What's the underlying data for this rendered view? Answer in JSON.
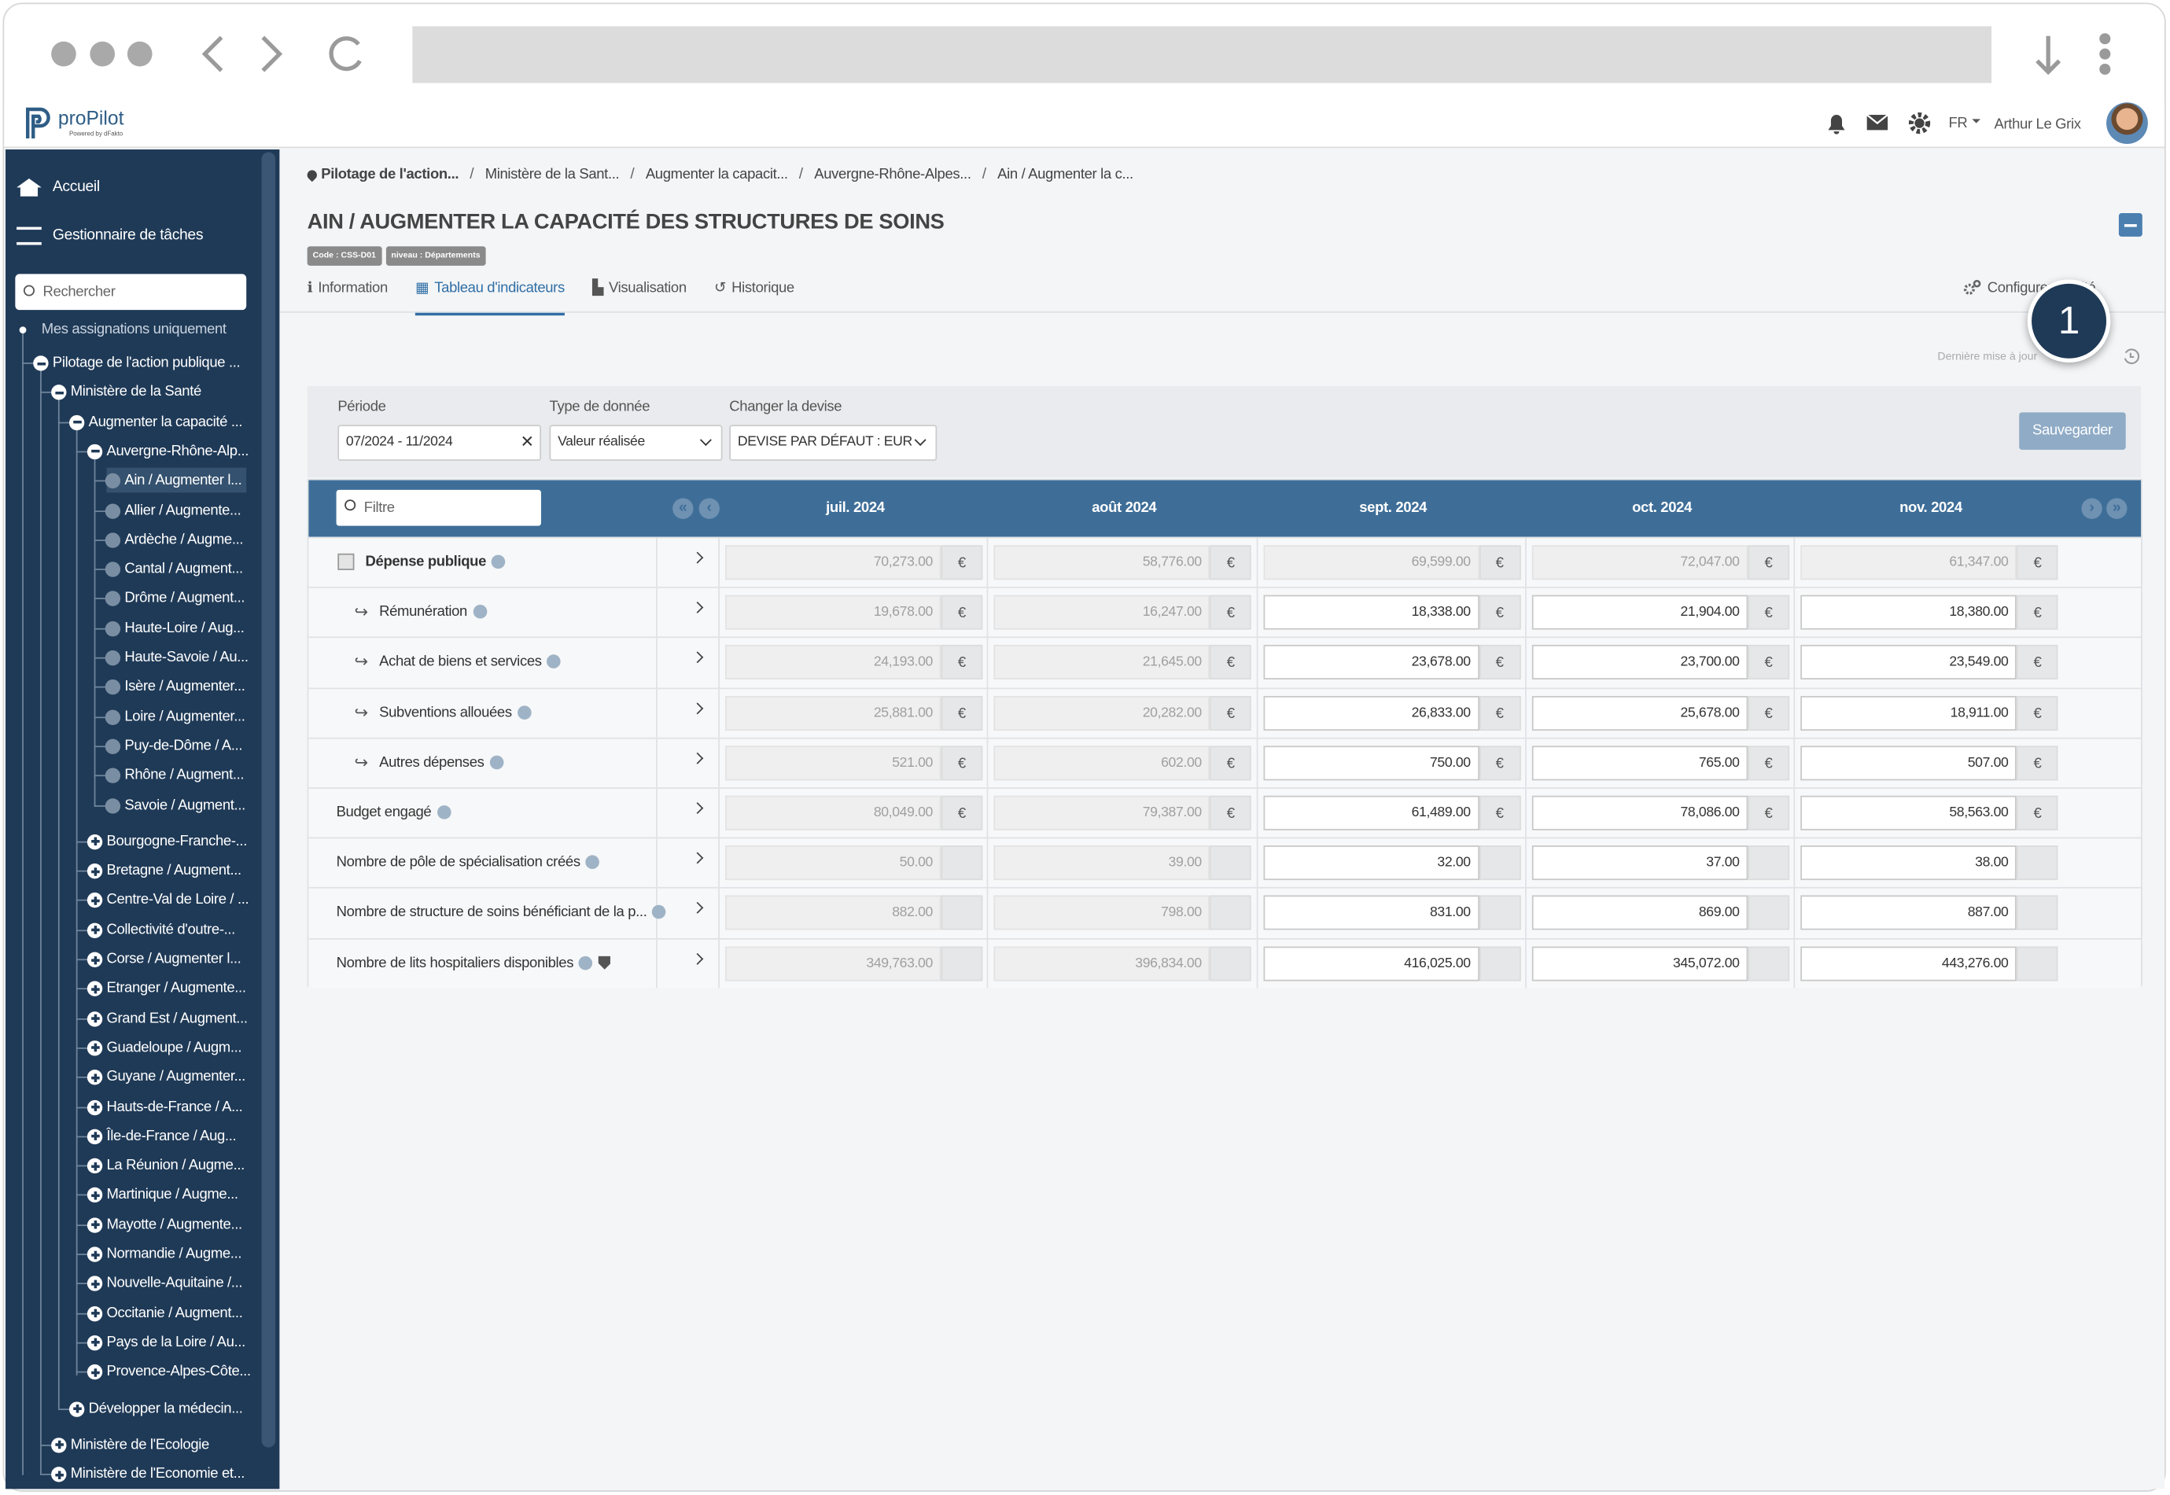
{
  "header": {
    "logo": "proPilot",
    "logo_sub": "Powered by dFakto",
    "language": "FR",
    "user": "Arthur Le Grix"
  },
  "sidebar": {
    "menu": [
      "Accueil",
      "Gestionnaire de tâches"
    ],
    "search_placeholder": "Rechercher",
    "filter": "Mes assignations uniquement",
    "tree": [
      {
        "level": 0,
        "state": "open",
        "label": "Pilotage de l'action publique ..."
      },
      {
        "level": 1,
        "state": "open",
        "label": "Ministère de la Santé"
      },
      {
        "level": 2,
        "state": "open",
        "label": "Augmenter la capacité ..."
      },
      {
        "level": 3,
        "state": "open",
        "label": "Auvergne-Rhône-Alp..."
      },
      {
        "level": 4,
        "state": "leaf",
        "label": "Ain / Augmenter l...",
        "selected": true
      },
      {
        "level": 4,
        "state": "leaf",
        "label": "Allier / Augmente..."
      },
      {
        "level": 4,
        "state": "leaf",
        "label": "Ardèche / Augme..."
      },
      {
        "level": 4,
        "state": "leaf",
        "label": "Cantal / Augment..."
      },
      {
        "level": 4,
        "state": "leaf",
        "label": "Drôme / Augment..."
      },
      {
        "level": 4,
        "state": "leaf",
        "label": "Haute-Loire / Aug..."
      },
      {
        "level": 4,
        "state": "leaf",
        "label": "Haute-Savoie / Au..."
      },
      {
        "level": 4,
        "state": "leaf",
        "label": "Isère / Augmenter..."
      },
      {
        "level": 4,
        "state": "leaf",
        "label": "Loire / Augmenter..."
      },
      {
        "level": 4,
        "state": "leaf",
        "label": "Puy-de-Dôme / A..."
      },
      {
        "level": 4,
        "state": "leaf",
        "label": "Rhône / Augment..."
      },
      {
        "level": 4,
        "state": "leaf",
        "label": "Savoie / Augment..."
      },
      {
        "level": 3,
        "state": "closed",
        "label": "Bourgogne-Franche-..."
      },
      {
        "level": 3,
        "state": "closed",
        "label": "Bretagne / Augment..."
      },
      {
        "level": 3,
        "state": "closed",
        "label": "Centre-Val de Loire / ..."
      },
      {
        "level": 3,
        "state": "closed",
        "label": "Collectivité d'outre-..."
      },
      {
        "level": 3,
        "state": "closed",
        "label": "Corse / Augmenter l..."
      },
      {
        "level": 3,
        "state": "closed",
        "label": "Etranger / Augmente..."
      },
      {
        "level": 3,
        "state": "closed",
        "label": "Grand Est / Augment..."
      },
      {
        "level": 3,
        "state": "closed",
        "label": "Guadeloupe / Augm..."
      },
      {
        "level": 3,
        "state": "closed",
        "label": "Guyane / Augmenter..."
      },
      {
        "level": 3,
        "state": "closed",
        "label": "Hauts-de-France / A..."
      },
      {
        "level": 3,
        "state": "closed",
        "label": "Île-de-France / Aug..."
      },
      {
        "level": 3,
        "state": "closed",
        "label": "La Réunion / Augme..."
      },
      {
        "level": 3,
        "state": "closed",
        "label": "Martinique / Augme..."
      },
      {
        "level": 3,
        "state": "closed",
        "label": "Mayotte / Augmente..."
      },
      {
        "level": 3,
        "state": "closed",
        "label": "Normandie / Augme..."
      },
      {
        "level": 3,
        "state": "closed",
        "label": "Nouvelle-Aquitaine /..."
      },
      {
        "level": 3,
        "state": "closed",
        "label": "Occitanie / Augment..."
      },
      {
        "level": 3,
        "state": "closed",
        "label": "Pays de la Loire / Au..."
      },
      {
        "level": 3,
        "state": "closed",
        "label": "Provence-Alpes-Côte..."
      },
      {
        "level": 2,
        "state": "closed",
        "label": "Développer la médecin..."
      },
      {
        "level": 1,
        "state": "closed",
        "label": "Ministère de l'Ecologie"
      },
      {
        "level": 1,
        "state": "closed",
        "label": "Ministère de l'Economie et..."
      }
    ]
  },
  "breadcrumb": [
    "Pilotage de l'action...",
    "Ministère de la Sant...",
    "Augmenter la capacit...",
    "Auvergne-Rhône-Alpes...",
    "Ain / Augmenter la c..."
  ],
  "page": {
    "title": "AIN / AUGMENTER LA CAPACITÉ DES STRUCTURES DE SOINS",
    "badges": [
      "Code : CSS-D01",
      "niveau : Départements"
    ],
    "tabs": [
      "Information",
      "Tableau d'indicateurs",
      "Visualisation",
      "Historique"
    ],
    "active_tab": 1,
    "config_link": "Configurer l'entité",
    "last_update": "Dernière mise à jour",
    "callout": "1"
  },
  "filters": {
    "fields": [
      {
        "label": "Période",
        "value": "07/2024 - 11/2024"
      },
      {
        "label": "Type de donnée",
        "value": "Valeur réalisée"
      },
      {
        "label": "Changer la devise",
        "value": "DEVISE PAR DÉFAUT : EUR"
      }
    ],
    "save": "Sauvegarder"
  },
  "table": {
    "filter_placeholder": "Filtre",
    "months": [
      "juil. 2024",
      "août 2024",
      "sept. 2024",
      "oct. 2024",
      "nov. 2024"
    ],
    "rows": [
      {
        "name": "Dépense publique",
        "bold": true,
        "unit": "€",
        "values": [
          "70,273.00",
          "58,776.00",
          "69,599.00",
          "72,047.00",
          "61,347.00"
        ],
        "editable": [
          false,
          false,
          false,
          false,
          false
        ]
      },
      {
        "name": "Rémunération",
        "child": true,
        "unit": "€",
        "values": [
          "19,678.00",
          "16,247.00",
          "18,338.00",
          "21,904.00",
          "18,380.00"
        ],
        "editable": [
          false,
          false,
          true,
          true,
          true
        ]
      },
      {
        "name": "Achat de biens et services",
        "child": true,
        "unit": "€",
        "values": [
          "24,193.00",
          "21,645.00",
          "23,678.00",
          "23,700.00",
          "23,549.00"
        ],
        "editable": [
          false,
          false,
          true,
          true,
          true
        ]
      },
      {
        "name": "Subventions allouées",
        "child": true,
        "unit": "€",
        "values": [
          "25,881.00",
          "20,282.00",
          "26,833.00",
          "25,678.00",
          "18,911.00"
        ],
        "editable": [
          false,
          false,
          true,
          true,
          true
        ]
      },
      {
        "name": "Autres dépenses",
        "child": true,
        "unit": "€",
        "values": [
          "521.00",
          "602.00",
          "750.00",
          "765.00",
          "507.00"
        ],
        "editable": [
          false,
          false,
          true,
          true,
          true
        ]
      },
      {
        "name": "Budget engagé",
        "unit": "€",
        "values": [
          "80,049.00",
          "79,387.00",
          "61,489.00",
          "78,086.00",
          "58,563.00"
        ],
        "editable": [
          false,
          false,
          true,
          true,
          true
        ]
      },
      {
        "name": "Nombre de pôle de spécialisation créés",
        "values": [
          "50.00",
          "39.00",
          "32.00",
          "37.00",
          "38.00"
        ],
        "editable": [
          false,
          false,
          true,
          true,
          true
        ]
      },
      {
        "name": "Nombre de structure de soins bénéficiant de la p...",
        "values": [
          "882.00",
          "798.00",
          "831.00",
          "869.00",
          "887.00"
        ],
        "editable": [
          false,
          false,
          true,
          true,
          true
        ]
      },
      {
        "name": "Nombre de lits hospitaliers disponibles",
        "shield": true,
        "values": [
          "349,763.00",
          "396,834.00",
          "416,025.00",
          "345,072.00",
          "443,276.00"
        ],
        "editable": [
          false,
          false,
          true,
          true,
          true
        ]
      }
    ]
  }
}
